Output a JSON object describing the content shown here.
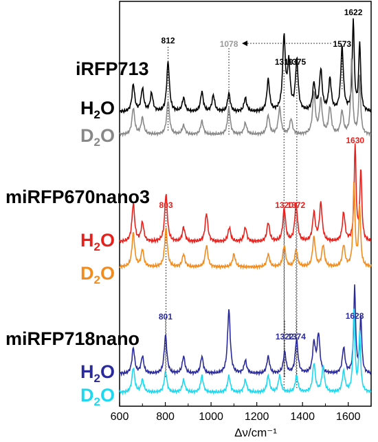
{
  "chart_data": {
    "type": "line",
    "title": "",
    "xlabel": "Δν/cm⁻¹",
    "ylabel": "",
    "xlim": [
      600,
      1700
    ],
    "x_ticks": [
      "600",
      "800",
      "1000",
      "1200",
      "1400",
      "1600"
    ],
    "grid": false,
    "proteins": [
      {
        "name": "iRFP713",
        "spectra": [
          {
            "solvent": "H",
            "solvent_sub": "2",
            "solvent_tail": "O",
            "color": "#000000",
            "peaks": [
              [
                660,
                0.3
              ],
              [
                700,
                0.25
              ],
              [
                740,
                0.2
              ],
              [
                812,
                0.55
              ],
              [
                880,
                0.15
              ],
              [
                960,
                0.22
              ],
              [
                1010,
                0.18
              ],
              [
                1078,
                0.2
              ],
              [
                1150,
                0.15
              ],
              [
                1250,
                0.35
              ],
              [
                1319,
                0.8
              ],
              [
                1340,
                0.5
              ],
              [
                1375,
                0.55
              ],
              [
                1450,
                0.3
              ],
              [
                1480,
                0.45
              ],
              [
                1520,
                0.35
              ],
              [
                1573,
                0.7
              ],
              [
                1622,
                1.0
              ],
              [
                1650,
                0.75
              ]
            ]
          },
          {
            "solvent": "D",
            "solvent_sub": "2",
            "solvent_tail": "O",
            "color": "#888888",
            "peaks": [
              [
                660,
                0.35
              ],
              [
                700,
                0.22
              ],
              [
                812,
                0.45
              ],
              [
                880,
                0.12
              ],
              [
                960,
                0.18
              ],
              [
                1078,
                0.35
              ],
              [
                1150,
                0.15
              ],
              [
                1250,
                0.25
              ],
              [
                1300,
                0.35
              ],
              [
                1350,
                0.2
              ],
              [
                1450,
                0.55
              ],
              [
                1480,
                0.45
              ],
              [
                1520,
                0.35
              ],
              [
                1573,
                0.3
              ],
              [
                1615,
                1.0
              ],
              [
                1650,
                0.75
              ]
            ]
          }
        ]
      },
      {
        "name": "miRFP670nano3",
        "spectra": [
          {
            "solvent": "H",
            "solvent_sub": "2",
            "solvent_tail": "O",
            "color": "#e8201c",
            "peaks": [
              [
                660,
                0.4
              ],
              [
                700,
                0.2
              ],
              [
                803,
                0.5
              ],
              [
                880,
                0.15
              ],
              [
                980,
                0.3
              ],
              [
                1080,
                0.15
              ],
              [
                1150,
                0.15
              ],
              [
                1250,
                0.2
              ],
              [
                1320,
                0.35
              ],
              [
                1372,
                0.4
              ],
              [
                1450,
                0.3
              ],
              [
                1480,
                0.4
              ],
              [
                1580,
                0.3
              ],
              [
                1630,
                1.0
              ],
              [
                1655,
                0.75
              ]
            ]
          },
          {
            "solvent": "D",
            "solvent_sub": "2",
            "solvent_tail": "O",
            "color": "#f28c1e",
            "peaks": [
              [
                660,
                0.4
              ],
              [
                700,
                0.2
              ],
              [
                803,
                0.45
              ],
              [
                880,
                0.15
              ],
              [
                980,
                0.25
              ],
              [
                1100,
                0.15
              ],
              [
                1250,
                0.15
              ],
              [
                1320,
                0.25
              ],
              [
                1372,
                0.2
              ],
              [
                1450,
                0.35
              ],
              [
                1490,
                0.25
              ],
              [
                1580,
                0.25
              ],
              [
                1625,
                1.0
              ],
              [
                1650,
                0.7
              ]
            ]
          }
        ]
      },
      {
        "name": "miRFP718nano",
        "spectra": [
          {
            "solvent": "H",
            "solvent_sub": "2",
            "solvent_tail": "O",
            "color": "#2a2a9c",
            "peaks": [
              [
                660,
                0.3
              ],
              [
                700,
                0.2
              ],
              [
                801,
                0.45
              ],
              [
                880,
                0.2
              ],
              [
                960,
                0.2
              ],
              [
                1078,
                0.75
              ],
              [
                1150,
                0.15
              ],
              [
                1250,
                0.2
              ],
              [
                1322,
                0.25
              ],
              [
                1374,
                0.4
              ],
              [
                1450,
                0.35
              ],
              [
                1470,
                0.45
              ],
              [
                1580,
                0.3
              ],
              [
                1628,
                1.0
              ],
              [
                1655,
                0.65
              ]
            ]
          },
          {
            "solvent": "D",
            "solvent_sub": "2",
            "solvent_tail": "O",
            "color": "#1ed8f0",
            "peaks": [
              [
                660,
                0.3
              ],
              [
                700,
                0.15
              ],
              [
                801,
                0.25
              ],
              [
                880,
                0.15
              ],
              [
                960,
                0.2
              ],
              [
                1078,
                0.2
              ],
              [
                1150,
                0.15
              ],
              [
                1250,
                0.2
              ],
              [
                1300,
                0.2
              ],
              [
                1374,
                0.2
              ],
              [
                1450,
                0.35
              ],
              [
                1490,
                0.3
              ],
              [
                1580,
                0.25
              ],
              [
                1625,
                1.0
              ],
              [
                1650,
                0.7
              ]
            ]
          }
        ]
      }
    ],
    "annotations": [
      {
        "text": "812",
        "x": 812,
        "color": "#000000"
      },
      {
        "text": "1078",
        "x": 1078,
        "color": "#999999"
      },
      {
        "text": "1573",
        "x": 1573,
        "color": "#000000"
      },
      {
        "text": "1622",
        "x": 1622,
        "color": "#000000"
      },
      {
        "text": "1319",
        "x": 1319,
        "color": "#000000"
      },
      {
        "text": "1375",
        "x": 1375,
        "color": "#000000"
      },
      {
        "text": "1630",
        "x": 1630,
        "color": "#e8201c"
      },
      {
        "text": "803",
        "x": 803,
        "color": "#e8201c"
      },
      {
        "text": "1320",
        "x": 1320,
        "color": "#e8201c"
      },
      {
        "text": "1372",
        "x": 1372,
        "color": "#e8201c"
      },
      {
        "text": "1628",
        "x": 1628,
        "color": "#2a2a9c"
      },
      {
        "text": "801",
        "x": 801,
        "color": "#2a2a9c"
      },
      {
        "text": "1322",
        "x": 1322,
        "color": "#2a2a9c"
      },
      {
        "text": "1374",
        "x": 1374,
        "color": "#2a2a9c"
      }
    ],
    "shift_arrow": {
      "from": 1573,
      "to": 1078
    },
    "dotted_guides": [
      812,
      1078,
      1319,
      1375,
      1573,
      803,
      1320,
      1372,
      801,
      1322,
      1374
    ]
  }
}
